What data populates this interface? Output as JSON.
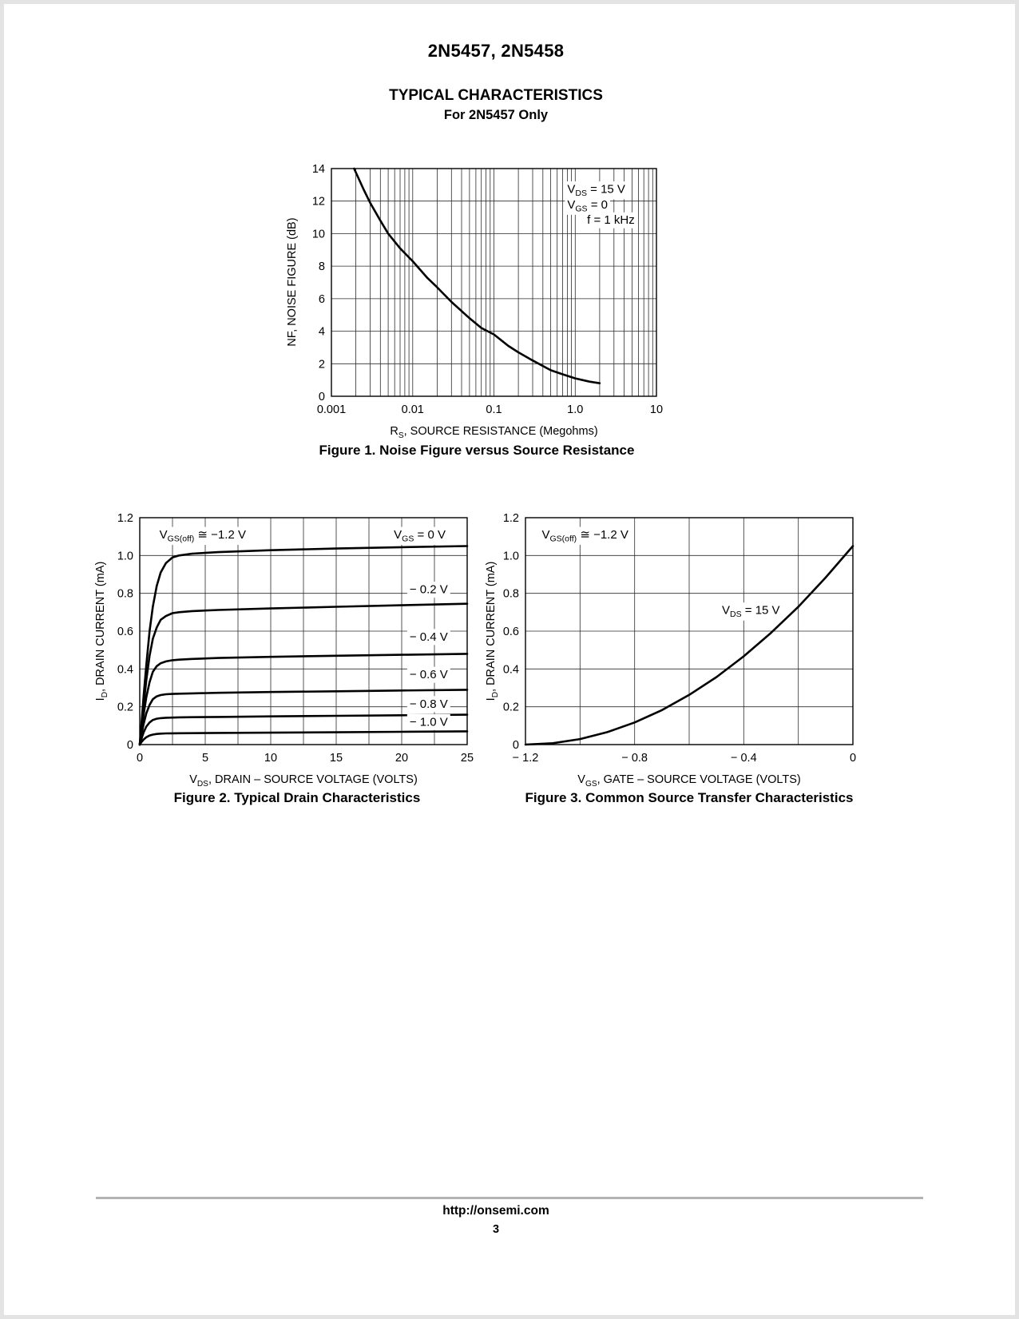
{
  "page": {
    "part_number": "2N5457, 2N5458",
    "section_title": "TYPICAL CHARACTERISTICS",
    "section_subtitle": "For 2N5457 Only",
    "footer_url": "http://onsemi.com",
    "page_number": "3"
  },
  "chart_data": [
    {
      "type": "line",
      "title": "Figure 1. Noise Figure versus Source Resistance",
      "xlabel": "R~S~, SOURCE RESISTANCE (Megohms)",
      "ylabel": "NF, NOISE FIGURE (dB)",
      "xscale": "log",
      "xlim": [
        0.001,
        10
      ],
      "ylim": [
        0,
        14
      ],
      "ygrid": 2,
      "grid": true,
      "legend": "none",
      "xticks": [
        0.001,
        0.01,
        0.1,
        1,
        10
      ],
      "xtick_labels": [
        "0.001",
        "0.01",
        "0.1",
        "1.0",
        "10"
      ],
      "yticks": [
        0,
        2,
        4,
        6,
        8,
        10,
        12,
        14
      ],
      "ytick_labels": [
        "0",
        "2",
        "4",
        "6",
        "8",
        "10",
        "12",
        "14"
      ],
      "annotations": [
        {
          "text": "V~DS~ = 15 V",
          "x": 0.8,
          "y": 12.5,
          "anchor": "start"
        },
        {
          "text": "V~GS~ = 0",
          "x": 0.8,
          "y": 11.55,
          "anchor": "start"
        },
        {
          "text": "f = 1 kHz",
          "x": 1.4,
          "y": 10.6,
          "anchor": "start"
        }
      ],
      "series": [
        {
          "name": "noise figure",
          "x": [
            0.0019,
            0.0025,
            0.003,
            0.004,
            0.005,
            0.007,
            0.01,
            0.015,
            0.02,
            0.03,
            0.05,
            0.07,
            0.1,
            0.15,
            0.2,
            0.3,
            0.5,
            0.7,
            1.0,
            1.5,
            2.0
          ],
          "y": [
            14,
            12.7,
            11.9,
            10.8,
            10.0,
            9.1,
            8.3,
            7.3,
            6.7,
            5.8,
            4.8,
            4.2,
            3.8,
            3.1,
            2.7,
            2.2,
            1.6,
            1.35,
            1.1,
            0.9,
            0.8
          ]
        }
      ]
    },
    {
      "type": "line",
      "title": "Figure 2. Typical Drain Characteristics",
      "xlabel": "V~DS~, DRAIN – SOURCE VOLTAGE (VOLTS)",
      "ylabel": "I~D~, DRAIN CURRENT (mA)",
      "xscale": "linear",
      "xlim": [
        0,
        25
      ],
      "ylim": [
        0,
        1.2
      ],
      "xgrid": 2.5,
      "ygrid": 0.2,
      "grid": true,
      "legend": "none",
      "xticks": [
        0,
        5,
        10,
        15,
        20,
        25
      ],
      "xtick_labels": [
        "0",
        "5",
        "10",
        "15",
        "20",
        "25"
      ],
      "yticks": [
        0,
        0.2,
        0.4,
        0.6,
        0.8,
        1.0,
        1.2
      ],
      "ytick_labels": [
        "0",
        "0.2",
        "0.4",
        "0.6",
        "0.8",
        "1.0",
        "1.2"
      ],
      "annotations": [
        {
          "text": "V~GS(off)~ ≅ −1.2 V",
          "x": 1.5,
          "y": 1.09,
          "anchor": "start"
        },
        {
          "text": "V~GS~ = 0 V",
          "x": 19.4,
          "y": 1.09,
          "anchor": "start"
        },
        {
          "text": "− 0.2 V",
          "x": 20.6,
          "y": 0.8,
          "anchor": "start"
        },
        {
          "text": "− 0.4 V",
          "x": 20.6,
          "y": 0.55,
          "anchor": "start"
        },
        {
          "text": "− 0.6 V",
          "x": 20.6,
          "y": 0.35,
          "anchor": "start"
        },
        {
          "text": "− 0.8 V",
          "x": 20.6,
          "y": 0.195,
          "anchor": "start"
        },
        {
          "text": "− 1.0 V",
          "x": 20.6,
          "y": 0.1,
          "anchor": "start"
        }
      ],
      "series": [
        {
          "name": "VGS = 0 V",
          "x": [
            0,
            0.15,
            0.3,
            0.5,
            0.75,
            1,
            1.3,
            1.6,
            2,
            2.5,
            3,
            4,
            6,
            10,
            15,
            20,
            25
          ],
          "y": [
            0,
            0.13,
            0.26,
            0.42,
            0.6,
            0.73,
            0.84,
            0.91,
            0.96,
            0.99,
            1.0,
            1.01,
            1.018,
            1.028,
            1.037,
            1.044,
            1.05
          ]
        },
        {
          "name": "VGS = −0.2 V",
          "x": [
            0,
            0.15,
            0.3,
            0.5,
            0.75,
            1,
            1.3,
            1.6,
            2,
            2.5,
            3,
            4,
            6,
            10,
            15,
            20,
            25
          ],
          "y": [
            0,
            0.11,
            0.21,
            0.34,
            0.47,
            0.56,
            0.62,
            0.66,
            0.68,
            0.695,
            0.7,
            0.706,
            0.712,
            0.72,
            0.729,
            0.737,
            0.745
          ]
        },
        {
          "name": "VGS = −0.4 V",
          "x": [
            0,
            0.15,
            0.3,
            0.5,
            0.75,
            1,
            1.3,
            1.6,
            2,
            2.5,
            3,
            4,
            6,
            10,
            15,
            20,
            25
          ],
          "y": [
            0,
            0.085,
            0.16,
            0.25,
            0.33,
            0.385,
            0.415,
            0.43,
            0.44,
            0.446,
            0.449,
            0.453,
            0.458,
            0.464,
            0.47,
            0.475,
            0.48
          ]
        },
        {
          "name": "VGS = −0.6 V",
          "x": [
            0,
            0.15,
            0.3,
            0.5,
            0.75,
            1,
            1.3,
            1.6,
            2,
            2.5,
            3,
            4,
            6,
            10,
            15,
            20,
            25
          ],
          "y": [
            0,
            0.06,
            0.11,
            0.165,
            0.21,
            0.24,
            0.255,
            0.262,
            0.266,
            0.268,
            0.269,
            0.271,
            0.274,
            0.278,
            0.282,
            0.286,
            0.29
          ]
        },
        {
          "name": "VGS = −0.8 V",
          "x": [
            0,
            0.15,
            0.3,
            0.5,
            0.75,
            1,
            1.3,
            1.6,
            2,
            2.5,
            3,
            4,
            6,
            10,
            15,
            20,
            25
          ],
          "y": [
            0,
            0.035,
            0.065,
            0.095,
            0.117,
            0.13,
            0.137,
            0.14,
            0.142,
            0.143,
            0.144,
            0.145,
            0.146,
            0.149,
            0.152,
            0.155,
            0.158
          ]
        },
        {
          "name": "VGS = −1.0 V",
          "x": [
            0,
            0.15,
            0.3,
            0.5,
            0.75,
            1,
            1.3,
            1.6,
            2,
            2.5,
            3,
            4,
            6,
            10,
            15,
            20,
            25
          ],
          "y": [
            0,
            0.015,
            0.027,
            0.039,
            0.048,
            0.053,
            0.056,
            0.058,
            0.059,
            0.0595,
            0.06,
            0.0605,
            0.0615,
            0.063,
            0.065,
            0.0675,
            0.07
          ]
        }
      ]
    },
    {
      "type": "line",
      "title": "Figure 3. Common Source Transfer Characteristics",
      "xlabel": "V~GS~, GATE – SOURCE VOLTAGE (VOLTS)",
      "ylabel": "I~D~, DRAIN CURRENT (mA)",
      "xscale": "linear",
      "xlim": [
        -1.2,
        0
      ],
      "ylim": [
        0,
        1.2
      ],
      "xgrid": 0.2,
      "ygrid": 0.2,
      "grid": true,
      "legend": "none",
      "xticks": [
        -1.2,
        -0.8,
        -0.4,
        0
      ],
      "xtick_labels": [
        "− 1.2",
        "− 0.8",
        "− 0.4",
        "0"
      ],
      "yticks": [
        0,
        0.2,
        0.4,
        0.6,
        0.8,
        1.0,
        1.2
      ],
      "ytick_labels": [
        "0",
        "0.2",
        "0.4",
        "0.6",
        "0.8",
        "1.0",
        "1.2"
      ],
      "annotations": [
        {
          "text": "V~GS(off)~ ≅ −1.2 V",
          "x": -1.14,
          "y": 1.09,
          "anchor": "start"
        },
        {
          "text": "V~DS~ = 15 V",
          "x": -0.48,
          "y": 0.69,
          "anchor": "start"
        }
      ],
      "series": [
        {
          "name": "ID vs VGS at VDS = 15 V",
          "x": [
            -1.2,
            -1.1,
            -1.0,
            -0.9,
            -0.8,
            -0.7,
            -0.6,
            -0.5,
            -0.4,
            -0.3,
            -0.2,
            -0.1,
            0
          ],
          "y": [
            0,
            0.007,
            0.029,
            0.066,
            0.117,
            0.182,
            0.263,
            0.357,
            0.467,
            0.591,
            0.729,
            0.883,
            1.05
          ]
        }
      ]
    }
  ]
}
